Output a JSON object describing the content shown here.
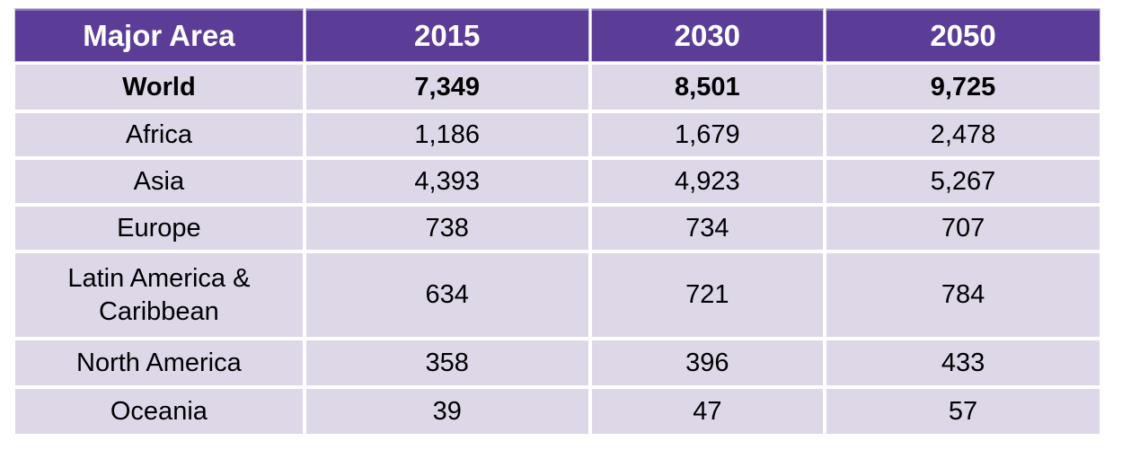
{
  "table": {
    "columns": [
      "Major Area",
      "2015",
      "2030",
      "2050"
    ],
    "rows": [
      {
        "area": "World",
        "is_total": true,
        "values": [
          "7,349",
          "8,501",
          "9,725"
        ]
      },
      {
        "area": "Africa",
        "is_total": false,
        "values": [
          "1,186",
          "1,679",
          "2,478"
        ]
      },
      {
        "area": "Asia",
        "is_total": false,
        "values": [
          "4,393",
          "4,923",
          "5,267"
        ]
      },
      {
        "area": "Europe",
        "is_total": false,
        "values": [
          "738",
          "734",
          "707"
        ]
      },
      {
        "area": "Latin America & Caribbean",
        "is_total": false,
        "values": [
          "634",
          "721",
          "784"
        ]
      },
      {
        "area": "North America",
        "is_total": false,
        "values": [
          "358",
          "396",
          "433"
        ]
      },
      {
        "area": "Oceania",
        "is_total": false,
        "values": [
          "39",
          "47",
          "57"
        ]
      }
    ]
  },
  "colors": {
    "header_bg": "#5B3C97",
    "header_text": "#FFFFFF",
    "row_bg": "#DDD7E8",
    "body_text": "#000000",
    "separator": "#FFFFFF"
  },
  "chart_data": {
    "type": "table",
    "columns": [
      "Major Area",
      "2015",
      "2030",
      "2050"
    ],
    "categories": [
      "World",
      "Africa",
      "Asia",
      "Europe",
      "Latin America & Caribbean",
      "North America",
      "Oceania"
    ],
    "series": [
      {
        "name": "2015",
        "values": [
          7349,
          1186,
          4393,
          738,
          634,
          358,
          39
        ]
      },
      {
        "name": "2030",
        "values": [
          8501,
          1679,
          4923,
          734,
          721,
          396,
          47
        ]
      },
      {
        "name": "2050",
        "values": [
          9725,
          2478,
          5267,
          707,
          784,
          433,
          57
        ]
      }
    ]
  }
}
